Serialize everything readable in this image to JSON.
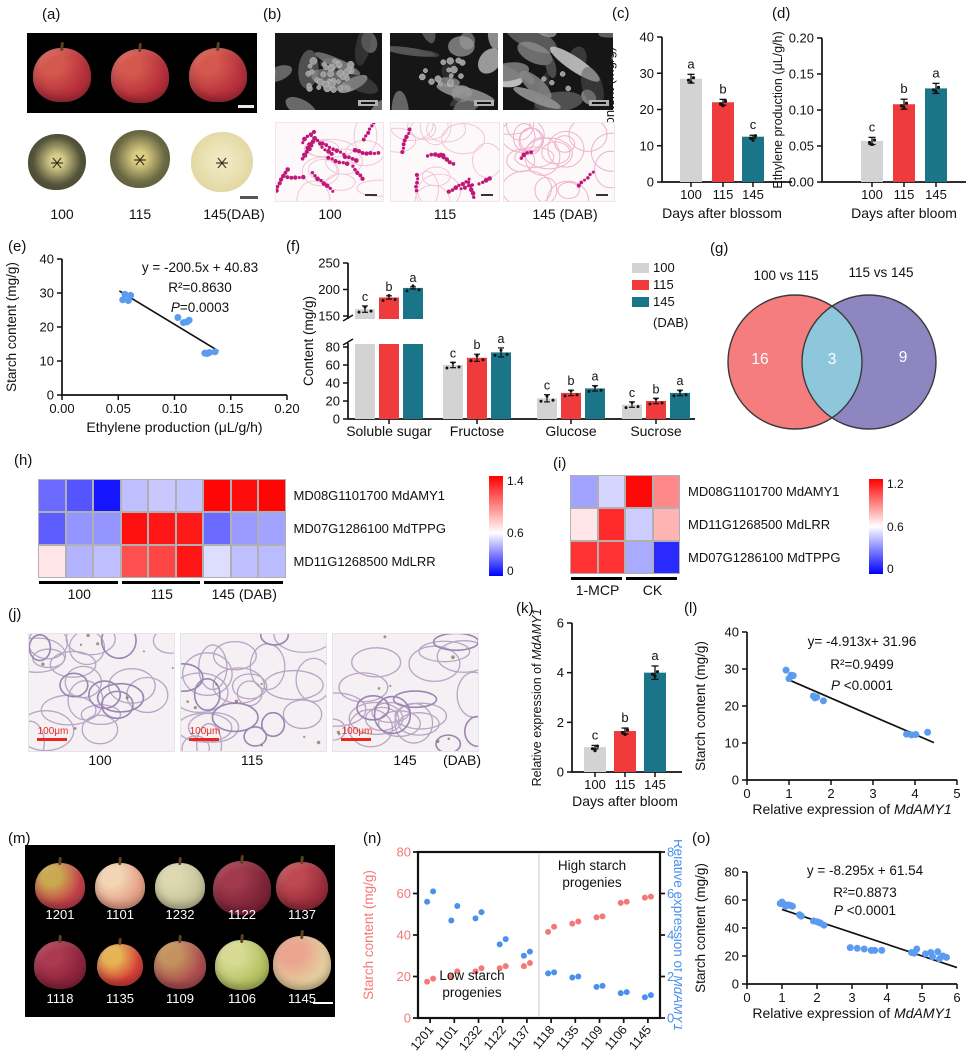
{
  "panel_letters": {
    "a": "(a)",
    "b": "(b)",
    "c": "(c)",
    "d": "(d)",
    "e": "(e)",
    "f": "(f)",
    "g": "(g)",
    "h": "(h)",
    "i": "(i)",
    "j": "(j)",
    "k": "(k)",
    "l": "(l)",
    "m": "(m)",
    "n": "(n)",
    "o": "(o)"
  },
  "colors": {
    "bar_gray": "#d3d3d3",
    "bar_red": "#ef3b3b",
    "bar_teal": "#1b7589",
    "scatter_blue": "#5b9bf0",
    "n_red": "#f57878",
    "n_blue": "#4a90ee",
    "venn_left": "#f57d7d",
    "venn_right": "#8d86c0",
    "venn_overlap": "#8ec6dc",
    "scalebar_red": "#e8281e"
  },
  "panel_a": {
    "stage_labels": [
      "100",
      "115",
      "145(DAB)"
    ],
    "apple_base": "#b7303c",
    "apple_patch": "#d4584d",
    "sections": [
      [
        "#d8cc8a",
        "#54543a",
        "#3c3d2c"
      ],
      [
        "#dbcd82",
        "#6c6a44",
        "#4a4a33"
      ],
      [
        "#f0e8c2",
        "#e6dcaa",
        "#d9cf9e"
      ]
    ]
  },
  "panel_b": {
    "stage_labels": [
      "100",
      "115",
      "145 (DAB)"
    ]
  },
  "panel_c": {
    "chart_data": {
      "type": "bar",
      "categories": [
        "100",
        "115",
        "145"
      ],
      "values": [
        28.5,
        22,
        12.5
      ],
      "errors": [
        1.2,
        0.8,
        0.4
      ],
      "sig_letters": [
        "a",
        "b",
        "c"
      ],
      "ylabel": "Starch content (mg/g)",
      "xlabel": "Days after blossom",
      "ylim": [
        0,
        40
      ],
      "yticks": [
        "0",
        "10",
        "20",
        "30",
        "40"
      ]
    }
  },
  "panel_d": {
    "chart_data": {
      "type": "bar",
      "categories": [
        "100",
        "115",
        "145"
      ],
      "values": [
        0.057,
        0.108,
        0.13
      ],
      "errors": [
        0.005,
        0.007,
        0.007
      ],
      "sig_letters": [
        "c",
        "b",
        "a"
      ],
      "ylabel": "Ethylene production (μL/g/h)",
      "xlabel": "Days after bloom",
      "ylim": [
        0,
        0.2
      ],
      "yticks": [
        "0.00",
        "0.05",
        "0.10",
        "0.15",
        "0.20"
      ]
    }
  },
  "panel_e": {
    "chart_data": {
      "type": "scatter",
      "points": [
        [
          0.054,
          28.0
        ],
        [
          0.056,
          29.6
        ],
        [
          0.059,
          27.8
        ],
        [
          0.061,
          29.3
        ],
        [
          0.103,
          22.8
        ],
        [
          0.108,
          21.3
        ],
        [
          0.111,
          21.5
        ],
        [
          0.113,
          22.0
        ],
        [
          0.127,
          12.3
        ],
        [
          0.129,
          12.2
        ],
        [
          0.131,
          12.5
        ],
        [
          0.136,
          12.7
        ]
      ],
      "fit": {
        "slope": -200.5,
        "intercept": 40.83,
        "x_range": [
          0.051,
          0.139
        ]
      },
      "annotations": [
        "y = -200.5x + 40.83",
        "R²=0.8630",
        "*P*=0.0003"
      ],
      "xlabel": "Ethylene production (μL/g/h)",
      "ylabel": "Starch content (mg/g)",
      "xlim": [
        0,
        0.2
      ],
      "ylim": [
        0,
        40
      ],
      "xticks": [
        "0.00",
        "0.05",
        "0.10",
        "0.15",
        "0.20"
      ],
      "yticks": [
        "0",
        "10",
        "20",
        "30",
        "40"
      ]
    }
  },
  "panel_f": {
    "chart_data": {
      "type": "bar",
      "grouped": true,
      "broken_axis": true,
      "categories": [
        "Soluble sugar",
        "Fructose",
        "Glucose",
        "Sucrose"
      ],
      "series": [
        {
          "name": "100",
          "values": [
            163,
            60,
            23,
            16
          ],
          "errors": [
            6,
            3,
            4,
            3
          ]
        },
        {
          "name": "115",
          "values": [
            185,
            68,
            29,
            20
          ],
          "errors": [
            3,
            4,
            3,
            3
          ]
        },
        {
          "name": "145",
          "values": [
            203,
            74,
            34,
            29
          ],
          "errors": [
            2,
            5,
            3,
            3
          ]
        }
      ],
      "sig_letters": [
        [
          "c",
          "b",
          "a"
        ],
        [
          "c",
          "b",
          "a"
        ],
        [
          "c",
          "b",
          "a"
        ],
        [
          "c",
          "b",
          "a"
        ]
      ],
      "ylabel": "Content (mg/g)",
      "lower_ticks": [
        "0",
        "20",
        "40",
        "60",
        "80"
      ],
      "upper_ticks": [
        "150",
        "200",
        "250"
      ],
      "legend": [
        "100",
        "115",
        "145",
        "(DAB)"
      ]
    }
  },
  "panel_g": {
    "chart_data": {
      "type": "venn",
      "sets": [
        {
          "label": "100 vs 115",
          "unique": "16"
        },
        {
          "label": "115 vs 145",
          "unique": "9"
        }
      ],
      "overlap": "3"
    }
  },
  "panel_h": {
    "chart_data": {
      "type": "heatmap",
      "group_labels": [
        "100",
        "115",
        "145 (DAB)"
      ],
      "rows": [
        {
          "label": "MD08G1101700 MdAMY1",
          "values": [
            0.25,
            0.2,
            0.05,
            0.45,
            0.47,
            0.46,
            1.38,
            1.36,
            1.38
          ]
        },
        {
          "label": "MD07G1286100 MdTPPG",
          "values": [
            0.22,
            0.35,
            0.35,
            1.35,
            1.33,
            1.32,
            0.25,
            0.36,
            0.38
          ]
        },
        {
          "label": "MD11G1268500 MdLRR",
          "values": [
            0.68,
            0.42,
            0.45,
            1.15,
            1.18,
            1.33,
            0.52,
            0.45,
            0.44
          ]
        }
      ],
      "scale_max": 1.4,
      "scale_mid": 0.6,
      "colorbar_ticks": [
        "1.4",
        "0.6",
        "0"
      ]
    }
  },
  "panel_i": {
    "chart_data": {
      "type": "heatmap",
      "group_labels": [
        "1-MCP",
        "CK"
      ],
      "rows": [
        {
          "label": "MD08G1101700 MdAMY1",
          "values": [
            0.38,
            0.5,
            1.18,
            0.88
          ]
        },
        {
          "label": "MD11G1268500 MdLRR",
          "values": [
            0.66,
            1.1,
            0.48,
            0.78
          ]
        },
        {
          "label": "MD07G1286100 MdTPPG",
          "values": [
            1.08,
            1.08,
            0.4,
            0.1
          ]
        }
      ],
      "scale_max": 1.2,
      "scale_mid": 0.6,
      "colorbar_ticks": [
        "1.2",
        "0.6",
        "0"
      ]
    }
  },
  "panel_j": {
    "stage_labels": [
      "100",
      "115",
      "145",
      "(DAB)"
    ],
    "scale_text": "100μm"
  },
  "panel_k": {
    "chart_data": {
      "type": "bar",
      "categories": [
        "100",
        "115",
        "145"
      ],
      "values": [
        1.0,
        1.65,
        4.0
      ],
      "errors": [
        0.07,
        0.12,
        0.27
      ],
      "sig_letters": [
        "c",
        "b",
        "a"
      ],
      "ylabel": "Relative expression of *MdAMY1*",
      "xlabel": "Days after bloom",
      "ylim": [
        0,
        6
      ],
      "yticks": [
        "0",
        "2",
        "4",
        "6"
      ]
    }
  },
  "panel_l": {
    "chart_data": {
      "type": "scatter",
      "points": [
        [
          0.93,
          29.7
        ],
        [
          1.0,
          27.4
        ],
        [
          1.05,
          28.3
        ],
        [
          1.1,
          28.2
        ],
        [
          1.58,
          22.7
        ],
        [
          1.62,
          22.2
        ],
        [
          1.66,
          22.4
        ],
        [
          1.82,
          21.4
        ],
        [
          3.8,
          12.4
        ],
        [
          3.92,
          12.2
        ],
        [
          4.02,
          12.3
        ],
        [
          4.3,
          12.9
        ]
      ],
      "fit": {
        "slope": -4.913,
        "intercept": 31.96,
        "x_range": [
          1.0,
          4.45
        ]
      },
      "annotations": [
        "y= -4.913x+ 31.96",
        "R²=0.9499",
        "*P* <0.0001"
      ],
      "xlabel": "Relative expression of *MdAMY1*",
      "ylabel": "Starch content (mg/g)",
      "xlim": [
        0,
        5
      ],
      "ylim": [
        0,
        40
      ],
      "xticks": [
        "0",
        "1",
        "2",
        "3",
        "4",
        "5"
      ],
      "yticks": [
        "0",
        "10",
        "20",
        "30",
        "40"
      ]
    }
  },
  "panel_m": {
    "apples": [
      {
        "id": "1201",
        "base": "#c4414b",
        "patch": "#c9a94f"
      },
      {
        "id": "1101",
        "base": "#e8a38b",
        "patch": "#f2d6b4"
      },
      {
        "id": "1232",
        "base": "#c9c69c",
        "patch": "#dcd8b0"
      },
      {
        "id": "1122",
        "base": "#7e2337",
        "patch": "#a03a4c"
      },
      {
        "id": "1137",
        "base": "#9e2e3e",
        "patch": "#bd4a52"
      },
      {
        "id": "1118",
        "base": "#8f243c",
        "patch": "#aa3a50"
      },
      {
        "id": "1135",
        "base": "#d8423a",
        "patch": "#e5b352"
      },
      {
        "id": "1109",
        "base": "#ad4f50",
        "patch": "#c3925e"
      },
      {
        "id": "1106",
        "base": "#b5c263",
        "patch": "#d8da94"
      },
      {
        "id": "1145",
        "base": "#e5cd9e",
        "patch": "#eba48e"
      }
    ]
  },
  "panel_n": {
    "chart_data": {
      "type": "scatter",
      "dual_axis": true,
      "categories": [
        "1201",
        "1101",
        "1232",
        "1122",
        "1137",
        "1118",
        "1135",
        "1109",
        "1106",
        "1145"
      ],
      "starch_series": {
        "name": "Starch content (mg/g)",
        "pairs": [
          [
            17.5,
            19
          ],
          [
            20,
            22.5
          ],
          [
            22.5,
            24
          ],
          [
            24,
            25
          ],
          [
            25,
            26.5
          ],
          [
            41.5,
            44
          ],
          [
            45.5,
            46.5
          ],
          [
            48.5,
            49
          ],
          [
            55.5,
            56
          ],
          [
            58,
            58.5
          ]
        ]
      },
      "expression_series": {
        "name": "Relative expression of MdAMY1",
        "pairs": [
          [
            5.6,
            6.1
          ],
          [
            4.7,
            5.4
          ],
          [
            4.8,
            5.1
          ],
          [
            3.55,
            3.8
          ],
          [
            3.0,
            3.2
          ],
          [
            2.15,
            2.2
          ],
          [
            1.95,
            2.0
          ],
          [
            1.5,
            1.55
          ],
          [
            1.2,
            1.25
          ],
          [
            1.0,
            1.1
          ]
        ]
      },
      "left_ylabel": "Starch content (mg/g)",
      "right_ylabel": "Relative expression of *MdAMY1*",
      "left_ylim": [
        0,
        80
      ],
      "right_ylim": [
        0,
        8
      ],
      "left_yticks": [
        "0",
        "20",
        "40",
        "60",
        "80"
      ],
      "right_yticks": [
        "0",
        "2",
        "4",
        "6",
        "8"
      ],
      "annotations": [
        [
          "High starch",
          "progenies"
        ],
        [
          "Low starch",
          "progenies"
        ]
      ]
    }
  },
  "panel_o": {
    "chart_data": {
      "type": "scatter",
      "points": [
        [
          0.95,
          57.5
        ],
        [
          1.0,
          58.5
        ],
        [
          1.05,
          57
        ],
        [
          1.1,
          55.5
        ],
        [
          1.18,
          56.5
        ],
        [
          1.25,
          56
        ],
        [
          1.3,
          55.5
        ],
        [
          1.5,
          49.5
        ],
        [
          1.55,
          48.5
        ],
        [
          1.9,
          45
        ],
        [
          2.0,
          44.5
        ],
        [
          2.05,
          44
        ],
        [
          2.1,
          43.5
        ],
        [
          2.2,
          42
        ],
        [
          2.95,
          26
        ],
        [
          3.15,
          25.5
        ],
        [
          3.35,
          25
        ],
        [
          3.55,
          24
        ],
        [
          3.65,
          24
        ],
        [
          3.85,
          24
        ],
        [
          4.7,
          22.5
        ],
        [
          4.78,
          22
        ],
        [
          4.85,
          25
        ],
        [
          5.1,
          21.5
        ],
        [
          5.25,
          22.5
        ],
        [
          5.3,
          19.5
        ],
        [
          5.45,
          23
        ],
        [
          5.5,
          18
        ],
        [
          5.6,
          20
        ],
        [
          5.7,
          19
        ]
      ],
      "fit": {
        "slope": -8.295,
        "intercept": 61.54,
        "x_range": [
          1.0,
          6.0
        ]
      },
      "annotations": [
        "y = -8.295x + 61.54",
        "R²=0.8873",
        "*P* <0.0001"
      ],
      "xlabel": "Relative expression of *MdAMY1*",
      "ylabel": "Starch content (mg/g)",
      "xlim": [
        0,
        6
      ],
      "ylim": [
        0,
        80
      ],
      "xticks": [
        "0",
        "1",
        "2",
        "3",
        "4",
        "5",
        "6"
      ],
      "yticks": [
        "0",
        "20",
        "40",
        "60",
        "80"
      ]
    }
  }
}
